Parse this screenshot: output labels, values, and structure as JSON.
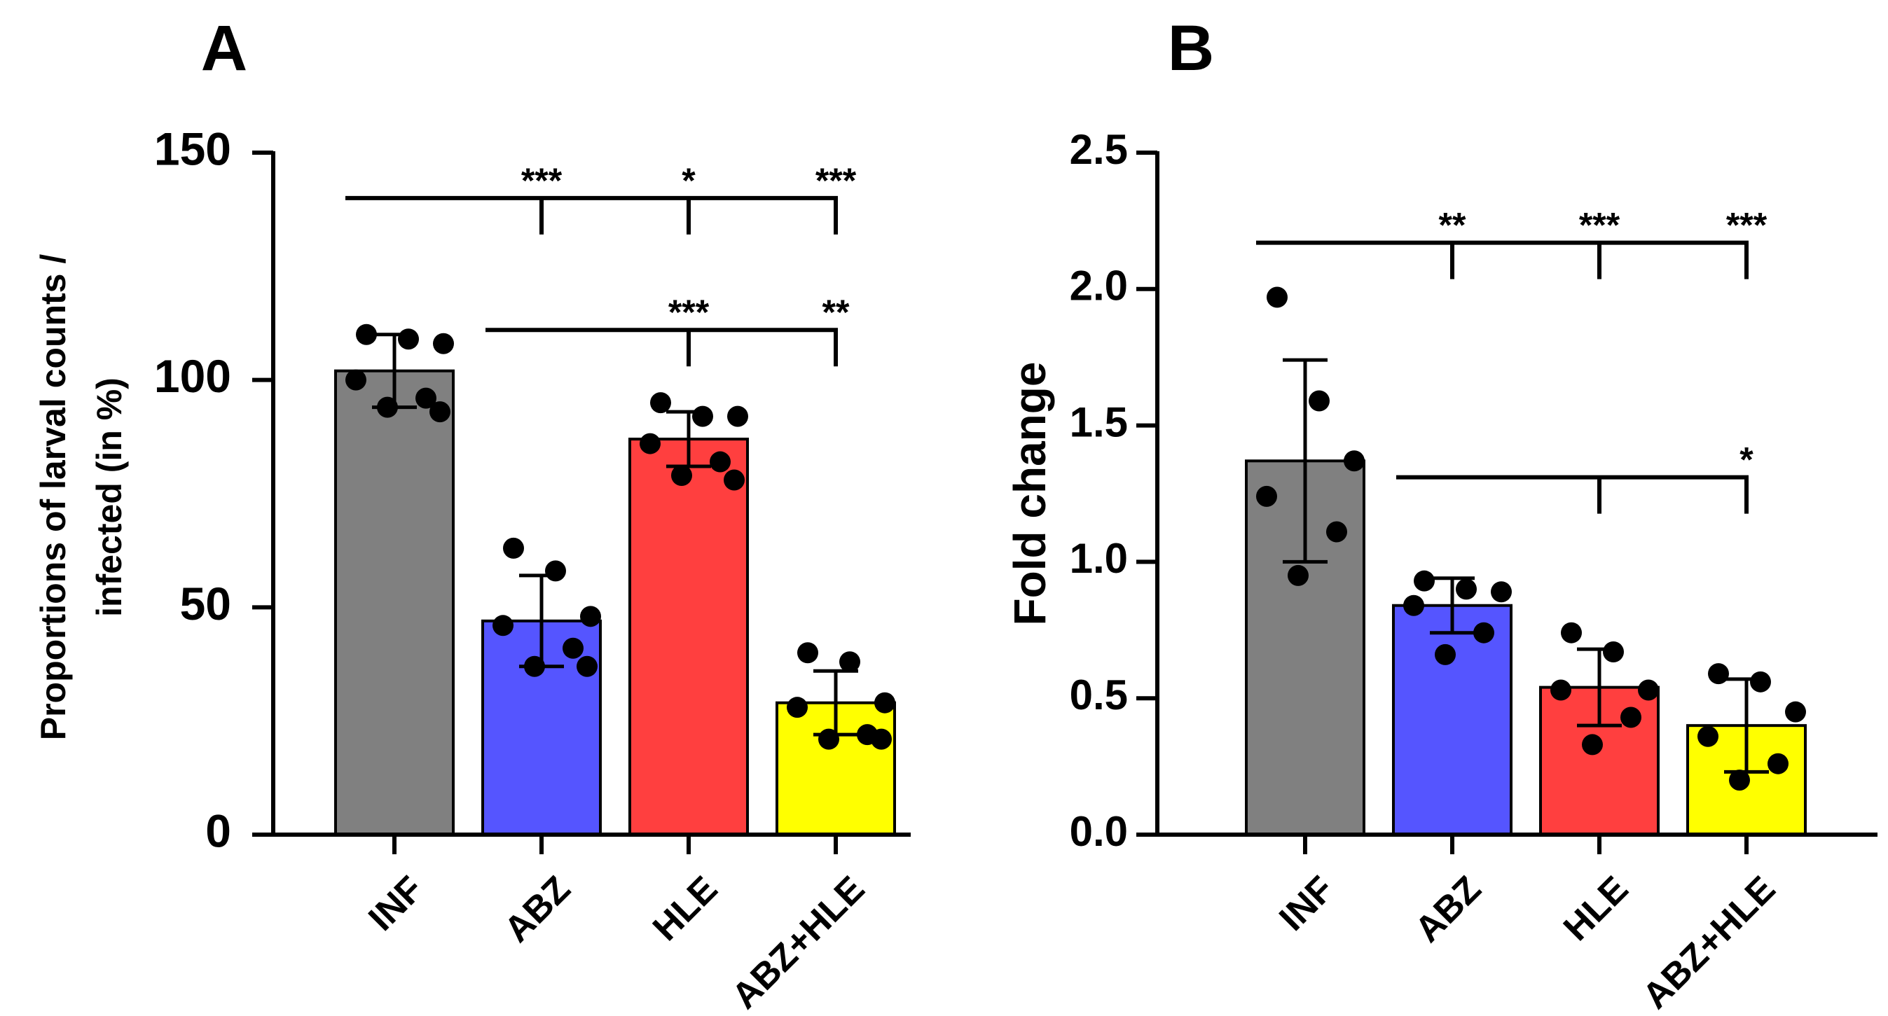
{
  "chart_data": [
    {
      "panel_label": "A",
      "type": "bar",
      "ylabel_lines": [
        "Proportions of larval counts /",
        "infected (in %)"
      ],
      "ylim": [
        0,
        150
      ],
      "yticks": [
        0,
        50,
        100,
        150
      ],
      "categories": [
        "INF",
        "ABZ",
        "HLE",
        "ABZ+HLE"
      ],
      "colors": [
        "#808080",
        "#5555FF",
        "#FF3F3F",
        "#FFFF00"
      ],
      "values": [
        102,
        47,
        87,
        29
      ],
      "error": [
        8,
        10,
        6,
        7
      ],
      "points": [
        [
          110,
          109,
          108,
          100,
          96,
          94,
          93
        ],
        [
          63,
          58,
          48,
          46,
          41,
          37,
          37
        ],
        [
          95,
          92,
          92,
          86,
          82,
          79,
          78
        ],
        [
          40,
          38,
          29,
          28,
          22,
          21,
          21
        ]
      ],
      "significance": [
        {
          "y": 140,
          "from": "INF",
          "to": [
            "ABZ",
            "HLE",
            "ABZ+HLE"
          ],
          "labels": [
            "***",
            "*",
            "***"
          ]
        },
        {
          "y": 111,
          "from": "ABZ",
          "to": [
            "HLE",
            "ABZ+HLE"
          ],
          "labels": [
            "***",
            "**"
          ]
        }
      ]
    },
    {
      "panel_label": "B",
      "type": "bar",
      "ylabel_lines": [
        "Fold change"
      ],
      "ylim": [
        0,
        2.5
      ],
      "yticks": [
        0.0,
        0.5,
        1.0,
        1.5,
        2.0,
        2.5
      ],
      "ytick_labels": [
        "0.0",
        "0.5",
        "1.0",
        "1.5",
        "2.0",
        "2.5"
      ],
      "categories": [
        "INF",
        "ABZ",
        "HLE",
        "ABZ+HLE"
      ],
      "colors": [
        "#808080",
        "#5555FF",
        "#FF3F3F",
        "#FFFF00"
      ],
      "values": [
        1.37,
        0.84,
        0.54,
        0.4
      ],
      "error": [
        0.37,
        0.1,
        0.14,
        0.17
      ],
      "points": [
        [
          1.97,
          1.59,
          1.37,
          1.24,
          1.11,
          0.95
        ],
        [
          0.93,
          0.9,
          0.89,
          0.84,
          0.74,
          0.66
        ],
        [
          0.74,
          0.67,
          0.53,
          0.53,
          0.43,
          0.33
        ],
        [
          0.59,
          0.56,
          0.45,
          0.36,
          0.26,
          0.2
        ]
      ],
      "significance": [
        {
          "y": 2.17,
          "from": "INF",
          "to": [
            "ABZ",
            "HLE",
            "ABZ+HLE"
          ],
          "labels": [
            "**",
            "***",
            "***"
          ]
        },
        {
          "y": 1.31,
          "from": "ABZ",
          "to": [
            "HLE",
            "ABZ+HLE"
          ],
          "labels": [
            "",
            "*"
          ]
        }
      ]
    }
  ]
}
